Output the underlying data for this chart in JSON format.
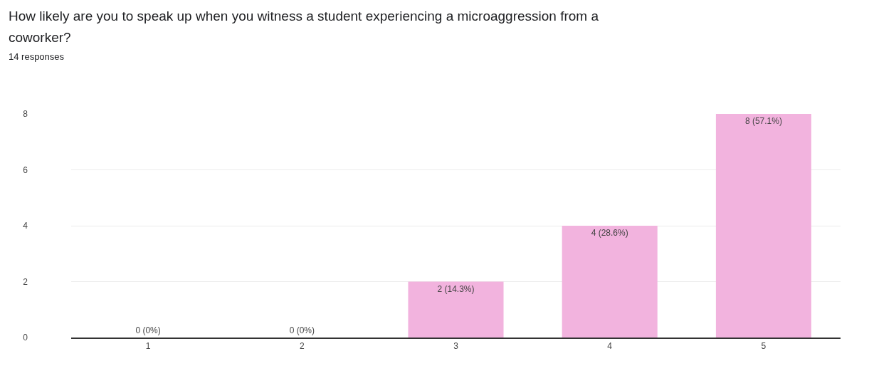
{
  "chart_data": {
    "type": "bar",
    "title": "How likely are you to speak up when you witness a student experiencing a microaggression from a coworker?",
    "subtitle": "14 responses",
    "categories": [
      "1",
      "2",
      "3",
      "4",
      "5"
    ],
    "values": [
      0,
      0,
      2,
      4,
      8
    ],
    "value_labels": [
      "0 (0%)",
      "0 (0%)",
      "2 (14.3%)",
      "4 (28.6%)",
      "8 (57.1%)"
    ],
    "color": "#f2b3de",
    "ylim": [
      0,
      8
    ],
    "yticks": [
      0,
      2,
      4,
      6,
      8
    ],
    "grid": "y"
  }
}
